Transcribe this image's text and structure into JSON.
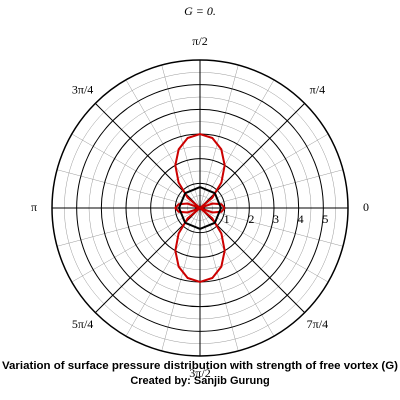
{
  "chart_data": {
    "type": "polar",
    "title": "G = 0.",
    "caption": [
      "Variation of surface pressure distribution with strength of free vortex (G)",
      "Created by: Sanjib Gurung"
    ],
    "x": [
      0,
      10,
      20,
      30,
      40,
      50,
      60,
      70,
      80,
      90,
      100,
      110,
      120,
      130,
      140,
      150,
      160,
      170,
      180,
      190,
      200,
      210,
      220,
      230,
      240,
      250,
      260,
      270,
      280,
      290,
      300,
      310,
      320,
      330,
      340,
      350,
      360
    ],
    "series": [
      {
        "color": "#cc0000",
        "values": [
          1,
          0.88,
          0.53,
          0,
          0.65,
          1.35,
          2,
          2.53,
          2.88,
          3,
          2.88,
          2.53,
          2,
          1.35,
          0.65,
          0,
          0.53,
          0.88,
          1,
          0.88,
          0.53,
          0,
          0.65,
          1.35,
          2,
          2.53,
          2.88,
          3,
          2.88,
          2.53,
          2,
          1.35,
          0.65,
          0,
          0.53,
          0.88,
          1
        ]
      },
      {
        "color": "#000000",
        "x": [
          0,
          45,
          90,
          135,
          180,
          225,
          270,
          315,
          360
        ],
        "values": [
          0.85,
          0.85,
          0.85,
          0.85,
          0.85,
          0.85,
          0.85,
          0.85,
          0.85
        ]
      }
    ],
    "rlim": [
      0,
      6
    ],
    "rticks": [
      1,
      2,
      3,
      4,
      5
    ],
    "xticks": [
      0,
      {
        "value": 45,
        "label": "π/4"
      },
      {
        "value": 90,
        "label": "π/2"
      },
      {
        "value": 135,
        "label": "3π/4"
      },
      {
        "value": 180,
        "label": "π"
      },
      {
        "value": 225,
        "label": "5π/4"
      },
      {
        "value": 270,
        "label": "3π/2"
      },
      {
        "value": 315,
        "label": "7π/4"
      }
    ],
    "grid": true
  }
}
